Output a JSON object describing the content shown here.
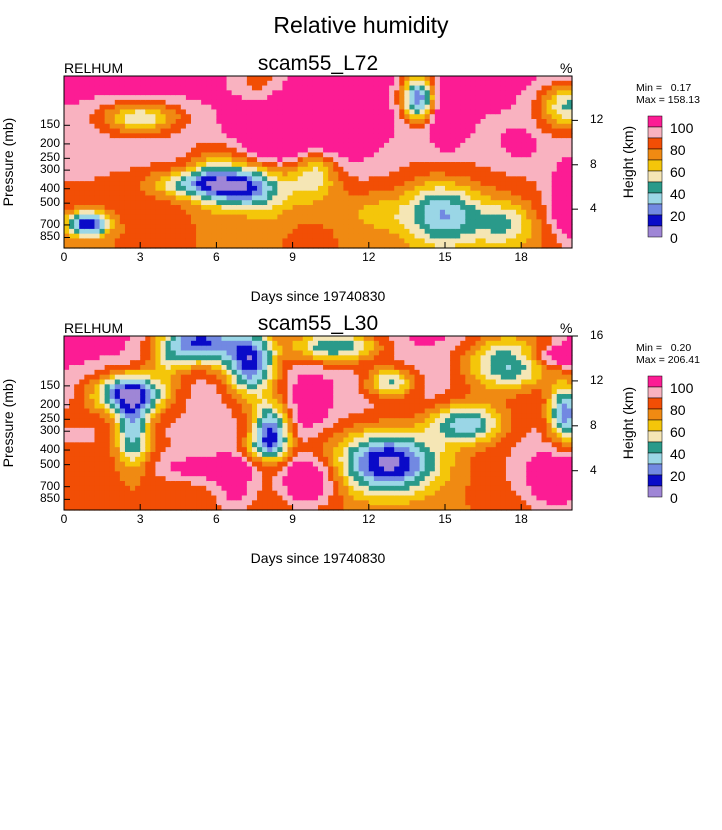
{
  "title": "Relative humidity",
  "colors": [
    "#9f86d6",
    "#0a0ac8",
    "#7289e2",
    "#9ad6e6",
    "#2a9a8a",
    "#f5e6b5",
    "#f4c60a",
    "#f08a12",
    "#f24e05",
    "#f9b2c0",
    "#fc1c94"
  ],
  "chart_data": [
    {
      "type": "heatmap",
      "variable": "RELHUM",
      "title": "scam55_L72",
      "units": "%",
      "xlabel": "Days since 19740830",
      "ylabel": "Pressure (mb)",
      "y2label": "Height (km)",
      "xlim": [
        0,
        20
      ],
      "x_ticks": [
        0,
        3,
        6,
        9,
        12,
        15,
        18
      ],
      "y_ticks": [
        150,
        200,
        250,
        300,
        400,
        500,
        700,
        850
      ],
      "ylim_mb": [
        1000,
        70
      ],
      "y2_ticks": [
        4,
        8,
        12
      ],
      "y_scale": "log",
      "min": "0.17",
      "max": "158.13",
      "colorbar_labels": [
        "100",
        "80",
        "60",
        "40",
        "20",
        "0"
      ]
    },
    {
      "type": "heatmap",
      "variable": "RELHUM",
      "title": "scam55_L30",
      "units": "%",
      "xlabel": "Days since 19740830",
      "ylabel": "Pressure (mb)",
      "y2label": "Height (km)",
      "xlim": [
        0,
        20
      ],
      "x_ticks": [
        0,
        3,
        6,
        9,
        12,
        15,
        18
      ],
      "y_ticks": [
        150,
        200,
        250,
        300,
        400,
        500,
        700,
        850
      ],
      "ylim_mb": [
        1000,
        70
      ],
      "y2_ticks": [
        4,
        8,
        12,
        16
      ],
      "y_scale": "log",
      "min": "0.20",
      "max": "206.41",
      "colorbar_labels": [
        "100",
        "80",
        "60",
        "40",
        "20",
        "0"
      ]
    }
  ]
}
